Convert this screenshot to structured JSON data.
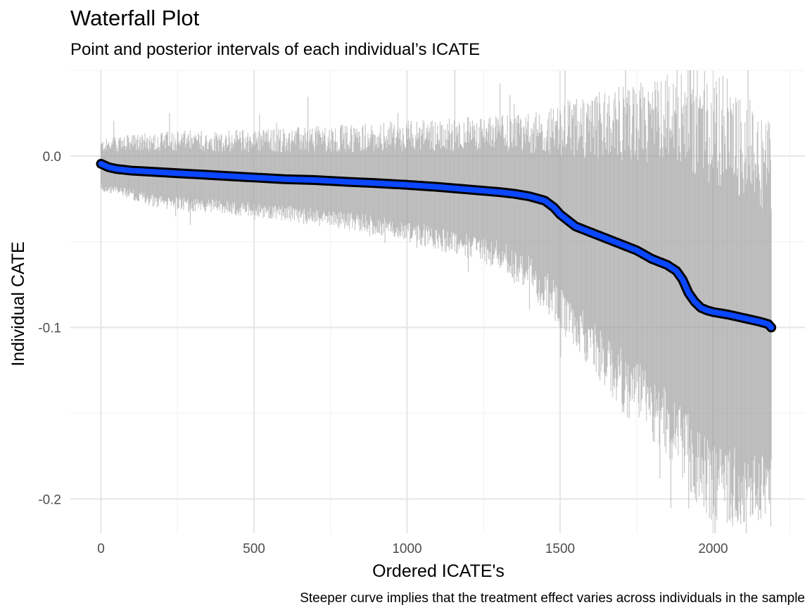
{
  "chart_data": {
    "type": "line",
    "title": "Waterfall Plot",
    "subtitle": "Point and posterior intervals of each individual’s ICATE",
    "caption": "Steeper curve implies that the treatment effect varies across individuals in the sample",
    "xlabel": "Ordered ICATE's",
    "ylabel": "Individual CATE",
    "xlim": [
      -100,
      2300
    ],
    "ylim": [
      -0.22,
      0.05
    ],
    "x_ticks": [
      0,
      500,
      1000,
      1500,
      2000
    ],
    "x_tick_labels": [
      "0",
      "500",
      "1000",
      "1500",
      "2000"
    ],
    "y_ticks": [
      0.0,
      -0.1,
      -0.2
    ],
    "y_tick_labels": [
      "0.0",
      "-0.1",
      "-0.2"
    ],
    "grid": true,
    "n_individuals": 2190,
    "series": [
      {
        "kind": "point",
        "x": [
          0,
          25,
          50,
          100,
          200,
          300,
          400,
          500,
          600,
          700,
          800,
          900,
          1000,
          1100,
          1200,
          1300,
          1350,
          1400,
          1450,
          1480,
          1500,
          1550,
          1600,
          1650,
          1700,
          1750,
          1800,
          1850,
          1880,
          1900,
          1920,
          1940,
          1960,
          1980,
          2000,
          2050,
          2100,
          2150,
          2180,
          2190
        ],
        "y": [
          -0.0045,
          -0.0065,
          -0.0075,
          -0.0085,
          -0.0095,
          -0.0105,
          -0.0115,
          -0.0125,
          -0.0135,
          -0.014,
          -0.015,
          -0.0158,
          -0.0168,
          -0.018,
          -0.0195,
          -0.021,
          -0.022,
          -0.0235,
          -0.026,
          -0.03,
          -0.034,
          -0.041,
          -0.0445,
          -0.048,
          -0.0515,
          -0.055,
          -0.06,
          -0.0635,
          -0.067,
          -0.072,
          -0.08,
          -0.085,
          -0.0885,
          -0.09,
          -0.091,
          -0.0925,
          -0.0945,
          -0.0965,
          -0.098,
          -0.1
        ],
        "color": "#0a47ff",
        "outline": "#000000"
      },
      {
        "kind": "interval",
        "x": [
          0,
          200,
          500,
          800,
          1000,
          1200,
          1300,
          1400,
          1500,
          1600,
          1700,
          1800,
          1900,
          1950,
          2000,
          2100,
          2190
        ],
        "upper": [
          0.005,
          0.007,
          0.007,
          0.008,
          0.009,
          0.01,
          0.01,
          0.01,
          0.011,
          0.011,
          0.012,
          0.012,
          0.015,
          0.012,
          0.006,
          -0.002,
          -0.015
        ],
        "lower": [
          -0.017,
          -0.026,
          -0.03,
          -0.036,
          -0.042,
          -0.05,
          -0.055,
          -0.065,
          -0.085,
          -0.105,
          -0.125,
          -0.14,
          -0.16,
          -0.175,
          -0.185,
          -0.186,
          -0.188
        ],
        "color": "#999999"
      }
    ]
  }
}
